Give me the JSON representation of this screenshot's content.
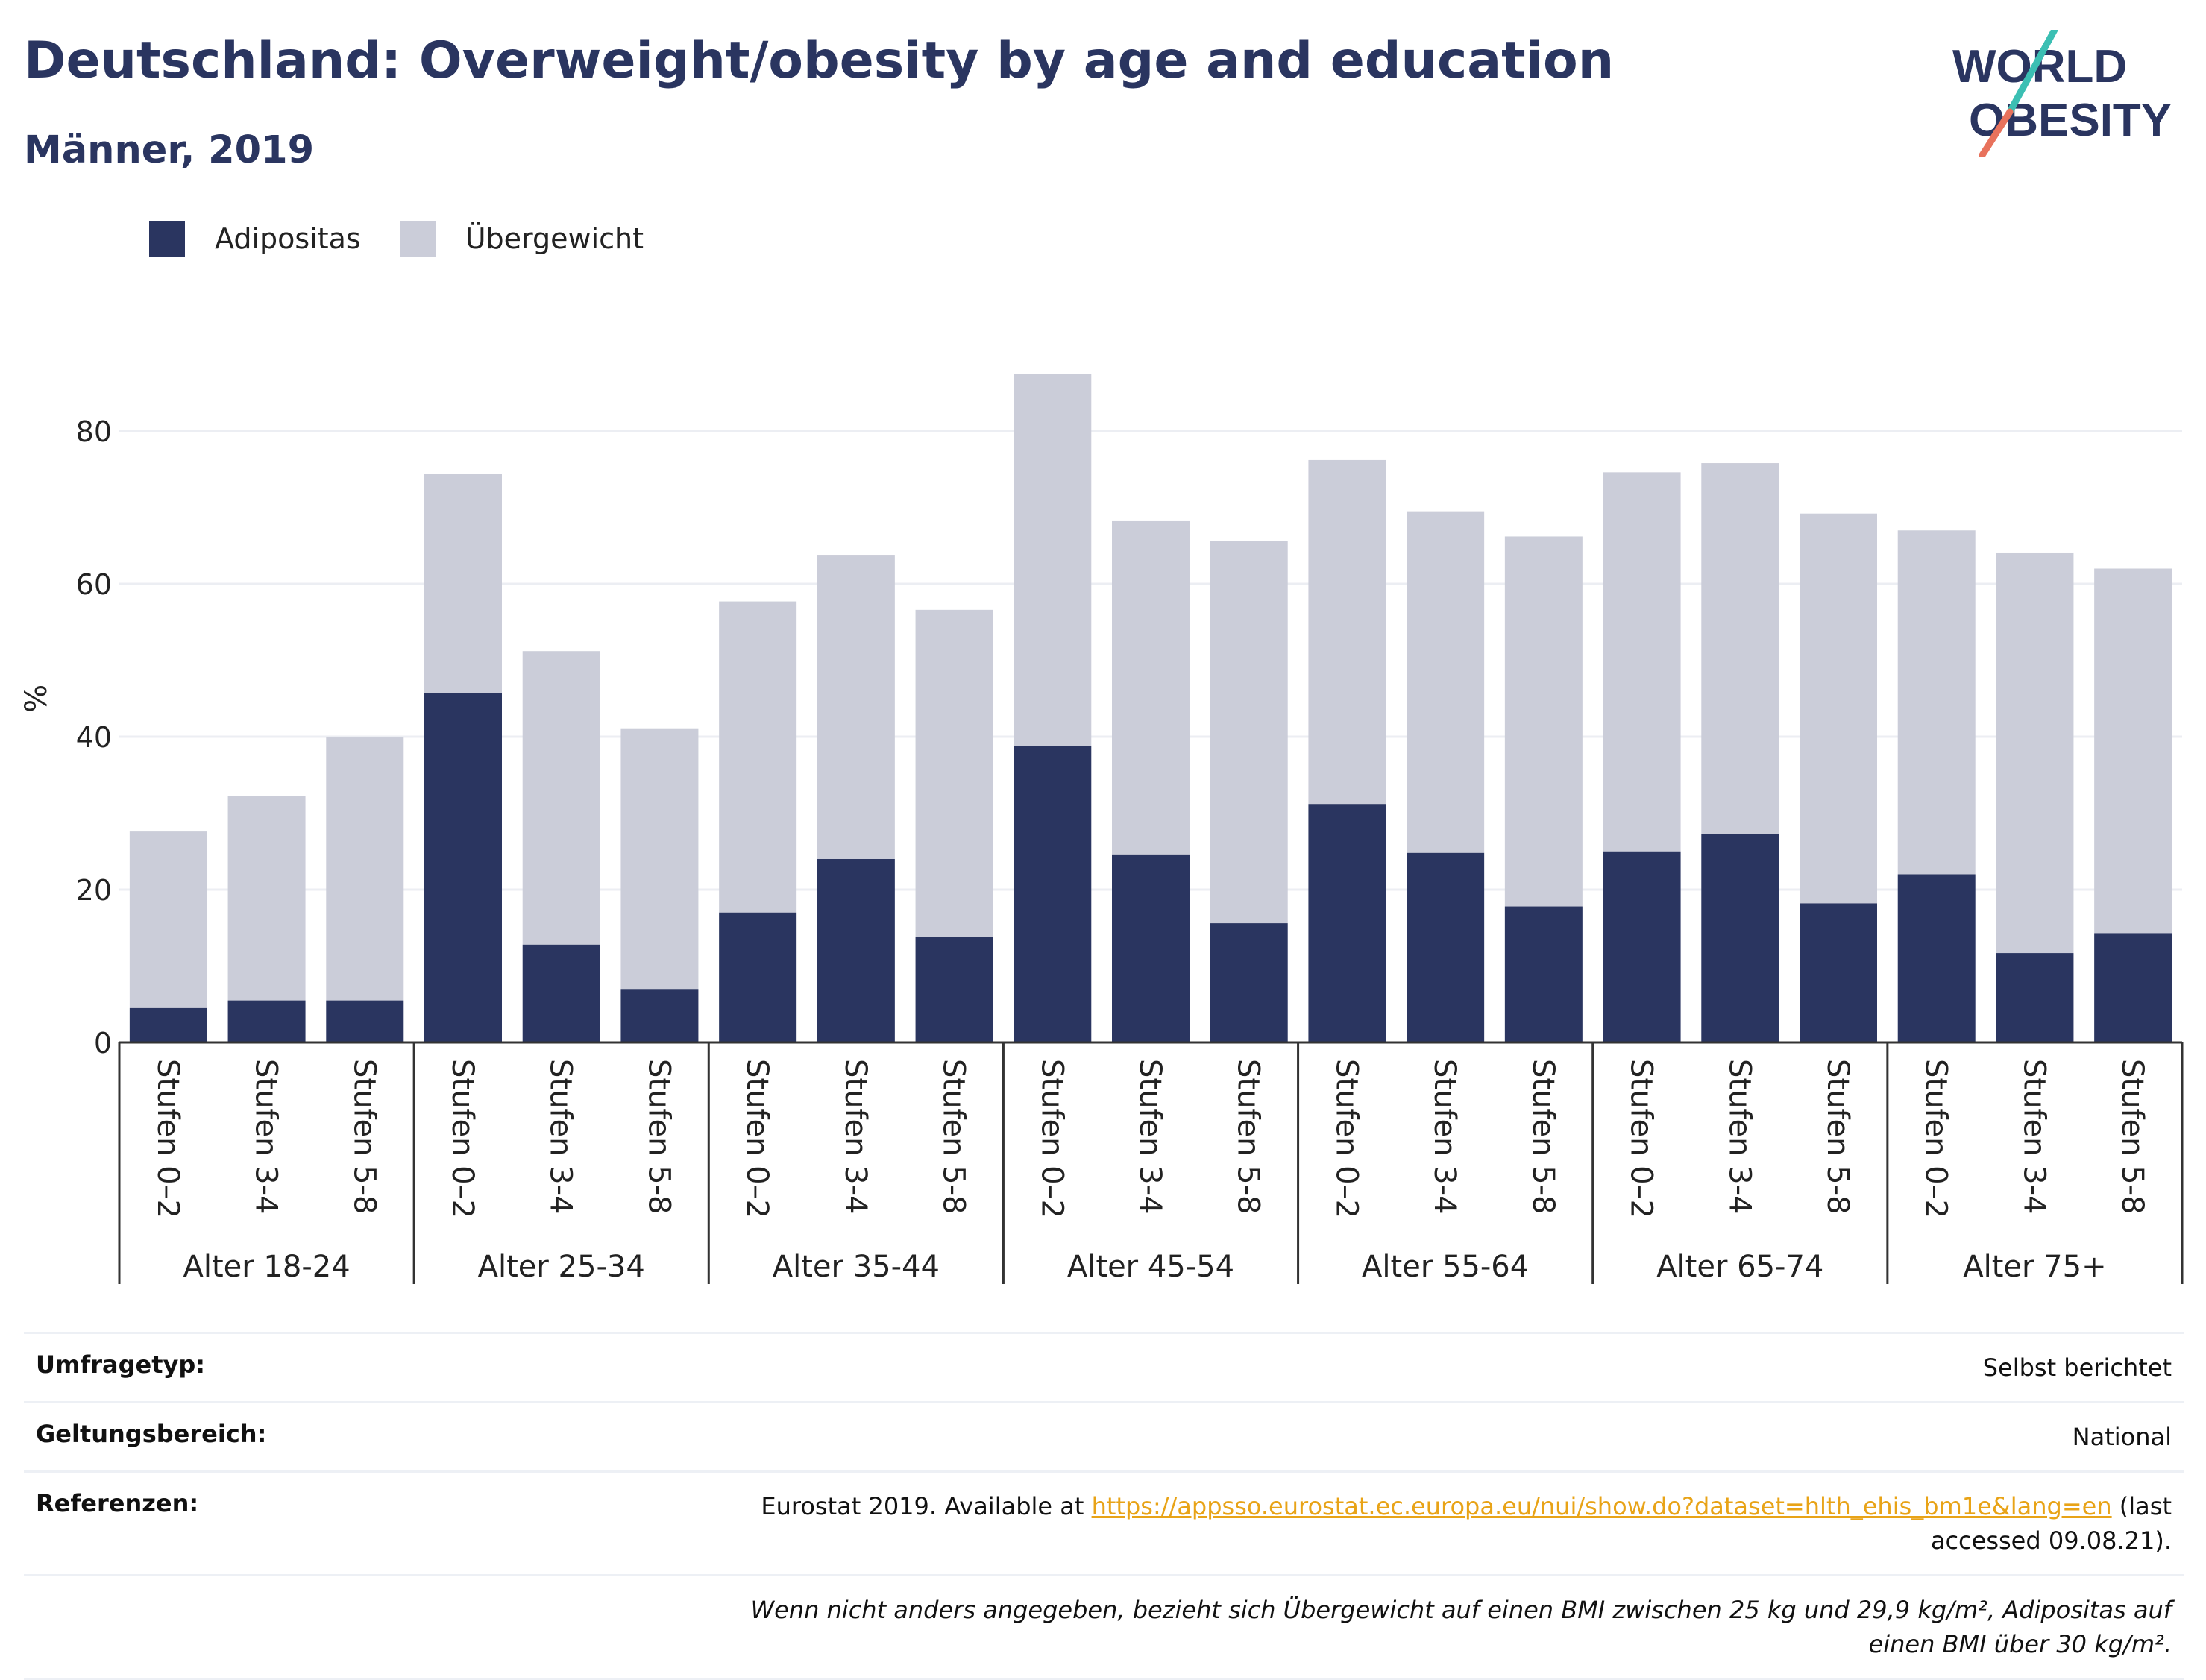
{
  "header": {
    "title": "Deutschland: Overweight/obesity by age and education",
    "subtitle": "Männer, 2019"
  },
  "logo": {
    "line1": "WORLD",
    "line2": "OBESITY"
  },
  "legend": {
    "items": [
      {
        "label": "Adipositas",
        "color": "#2a3560"
      },
      {
        "label": "Übergewicht",
        "color": "#cbcdd9"
      }
    ]
  },
  "chart_data": {
    "type": "bar",
    "stacked": true,
    "ylabel": "%",
    "ylim": [
      0,
      90
    ],
    "yticks": [
      0,
      20,
      40,
      60,
      80
    ],
    "grid": true,
    "legend_position": "top-left",
    "groups": [
      {
        "label": "Alter 18-24",
        "categories": [
          "Stufen 0–2",
          "Stufen 3-4",
          "Stufen 5-8"
        ]
      },
      {
        "label": "Alter 25-34",
        "categories": [
          "Stufen 0–2",
          "Stufen 3-4",
          "Stufen 5-8"
        ]
      },
      {
        "label": "Alter 35-44",
        "categories": [
          "Stufen 0–2",
          "Stufen 3-4",
          "Stufen 5-8"
        ]
      },
      {
        "label": "Alter 45-54",
        "categories": [
          "Stufen 0–2",
          "Stufen 3-4",
          "Stufen 5-8"
        ]
      },
      {
        "label": "Alter 55-64",
        "categories": [
          "Stufen 0–2",
          "Stufen 3-4",
          "Stufen 5-8"
        ]
      },
      {
        "label": "Alter 65-74",
        "categories": [
          "Stufen 0–2",
          "Stufen 3-4",
          "Stufen 5-8"
        ]
      },
      {
        "label": "Alter 75+",
        "categories": [
          "Stufen 0–2",
          "Stufen 3-4",
          "Stufen 5-8"
        ]
      }
    ],
    "series": [
      {
        "name": "Adipositas",
        "color": "#2a3560",
        "values": [
          4.5,
          5.5,
          5.5,
          45.7,
          12.8,
          7.0,
          17.0,
          24.0,
          13.8,
          38.8,
          24.6,
          15.6,
          31.2,
          24.8,
          17.8,
          25.0,
          27.3,
          18.2,
          22.0,
          11.7,
          14.3
        ]
      },
      {
        "name": "Übergewicht",
        "color": "#cbcdd9",
        "values": [
          23.1,
          26.7,
          34.4,
          28.7,
          38.4,
          34.1,
          40.7,
          39.8,
          42.8,
          48.7,
          43.6,
          50.0,
          45.0,
          44.7,
          48.4,
          49.6,
          48.5,
          51.0,
          45.0,
          52.4,
          47.7
        ]
      }
    ]
  },
  "meta": {
    "rows": [
      {
        "key": "Umfragetyp:",
        "value": "Selbst berichtet"
      },
      {
        "key": "Geltungsbereich:",
        "value": "National"
      }
    ],
    "references": {
      "key": "Referenzen:",
      "prefix": "Eurostat 2019. Available at ",
      "link": "https://appsso.eurostat.ec.europa.eu/nui/show.do?dataset=hlth_ehis_bm1e&lang=en",
      "suffix": " (last accessed 09.08.21)."
    },
    "note": "Wenn nicht anders angegeben, bezieht sich Übergewicht auf einen BMI zwischen 25 kg und 29,9 kg/m², Adipositas auf einen BMI über 30 kg/m²."
  }
}
